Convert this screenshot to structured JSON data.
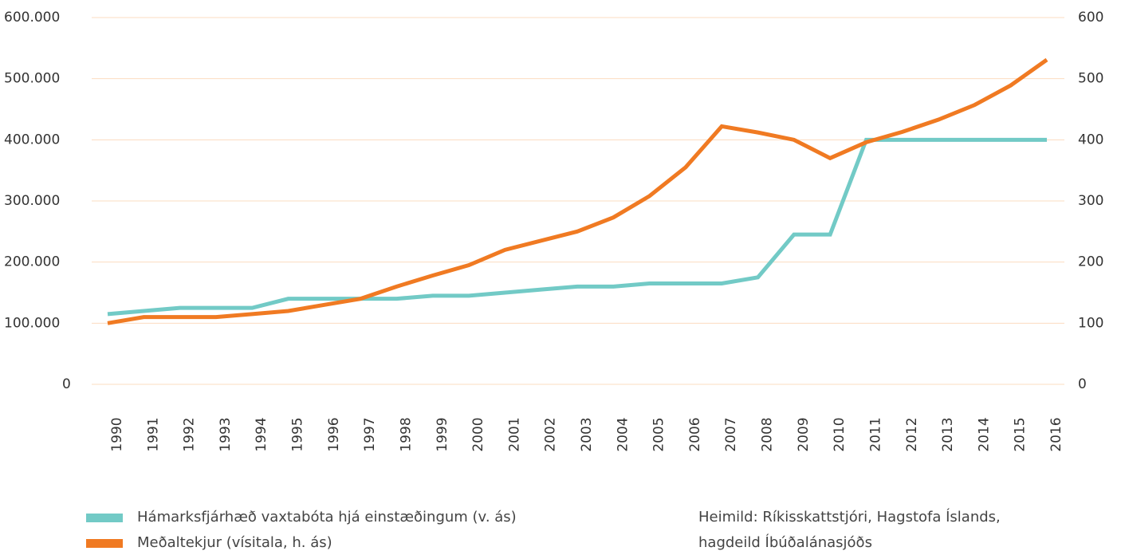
{
  "chart_data": {
    "type": "line",
    "categories": [
      "1990",
      "1991",
      "1992",
      "1993",
      "1994",
      "1995",
      "1996",
      "1997",
      "1998",
      "1999",
      "2000",
      "2001",
      "2002",
      "2003",
      "2004",
      "2005",
      "2006",
      "2007",
      "2008",
      "2009",
      "2010",
      "2011",
      "2012",
      "2013",
      "2014",
      "2015",
      "2016"
    ],
    "series": [
      {
        "name": "Hámarksfjárhæð vaxtabóta hjá einstæðingum (v. ás)",
        "color": "#72cac6",
        "axis": "y",
        "values": [
          115000,
          120000,
          125000,
          125000,
          125000,
          140000,
          140000,
          140000,
          140000,
          145000,
          145000,
          150000,
          155000,
          160000,
          160000,
          165000,
          165000,
          165000,
          175000,
          245000,
          245000,
          400000,
          400000,
          400000,
          400000,
          400000,
          400000
        ]
      },
      {
        "name": "Meðaltekjur (vísitala, h. ás)",
        "color": "#f07a22",
        "axis": "y2",
        "values": [
          100,
          110,
          110,
          110,
          115,
          120,
          130,
          140,
          160,
          178,
          195,
          220,
          235,
          250,
          273,
          308,
          355,
          422,
          412,
          400,
          370,
          396,
          413,
          433,
          457,
          489,
          531
        ]
      }
    ],
    "ylim": [
      0,
      600000
    ],
    "yticks": [
      0,
      {
        "value": 100000,
        "label": "100.000"
      },
      {
        "value": 200000,
        "label": "200.000"
      },
      {
        "value": 300000,
        "label": "300.000"
      },
      {
        "value": 400000,
        "label": "400.000"
      },
      {
        "value": 500000,
        "label": "500.000"
      },
      {
        "value": 600000,
        "label": "600.000"
      }
    ],
    "y2lim": [
      0,
      600
    ],
    "y2ticks": [
      0,
      100,
      200,
      300,
      400,
      500,
      600
    ],
    "grid": true,
    "grid_color": "#fbdcc0",
    "legend": "bottom-left",
    "source": [
      "Heimild: Ríkisskattstjóri, Hagstofa Íslands,",
      "hagdeild Íbúðalánasjóðs"
    ]
  }
}
